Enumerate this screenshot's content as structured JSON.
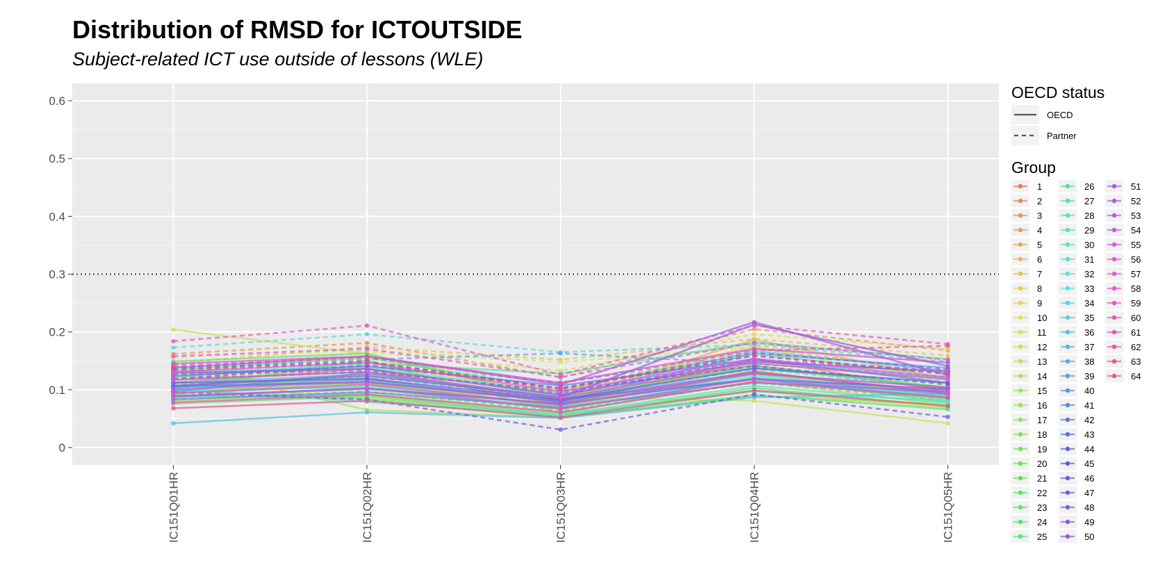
{
  "chart_data": {
    "type": "line",
    "title": "Distribution of RMSD for ICTOUTSIDE",
    "subtitle": "Subject-related ICT use outside of lessons (WLE)",
    "xlabel": "",
    "ylabel": "",
    "categories": [
      "IC151Q01HR",
      "IC151Q02HR",
      "IC151Q03HR",
      "IC151Q04HR",
      "IC151Q05HR"
    ],
    "y_ticks": [
      "0",
      "0.1",
      "0.2",
      "0.3",
      "0.4",
      "0.5",
      "0.6"
    ],
    "ylim": [
      -0.03,
      0.63
    ],
    "reference_line": 0.3,
    "grid": true,
    "legend_position": "right",
    "linetype_legend": {
      "title": "OECD status",
      "items": [
        {
          "label": "OECD",
          "dash": "solid"
        },
        {
          "label": "Partner",
          "dash": "dashed"
        }
      ]
    },
    "color_legend_title": "Group",
    "series": [
      {
        "name": "1",
        "status": "OECD",
        "values": [
          0.105,
          0.128,
          0.088,
          0.142,
          0.101
        ]
      },
      {
        "name": "2",
        "status": "OECD",
        "values": [
          0.112,
          0.137,
          0.074,
          0.153,
          0.097
        ]
      },
      {
        "name": "3",
        "status": "Partner",
        "values": [
          0.162,
          0.181,
          0.121,
          0.205,
          0.168
        ]
      },
      {
        "name": "4",
        "status": "OECD",
        "values": [
          0.093,
          0.121,
          0.068,
          0.133,
          0.089
        ]
      },
      {
        "name": "5",
        "status": "Partner",
        "values": [
          0.138,
          0.157,
          0.097,
          0.171,
          0.132
        ]
      },
      {
        "name": "6",
        "status": "OECD",
        "values": [
          0.124,
          0.109,
          0.082,
          0.187,
          0.118
        ]
      },
      {
        "name": "7",
        "status": "Partner",
        "values": [
          0.146,
          0.174,
          0.152,
          0.188,
          0.159
        ]
      },
      {
        "name": "8",
        "status": "OECD",
        "values": [
          0.081,
          0.094,
          0.061,
          0.115,
          0.073
        ]
      },
      {
        "name": "9",
        "status": "Partner",
        "values": [
          0.128,
          0.166,
          0.133,
          0.196,
          0.171
        ]
      },
      {
        "name": "10",
        "status": "OECD",
        "values": [
          0.116,
          0.142,
          0.095,
          0.176,
          0.107
        ]
      },
      {
        "name": "11",
        "status": "Partner",
        "values": [
          0.157,
          0.168,
          0.148,
          0.174,
          0.146
        ]
      },
      {
        "name": "12",
        "status": "OECD",
        "values": [
          0.204,
          0.162,
          0.086,
          0.081,
          0.042
        ]
      },
      {
        "name": "13",
        "status": "OECD",
        "values": [
          0.098,
          0.086,
          0.058,
          0.098,
          0.068
        ]
      },
      {
        "name": "14",
        "status": "Partner",
        "values": [
          0.121,
          0.138,
          0.091,
          0.147,
          0.116
        ]
      },
      {
        "name": "15",
        "status": "OECD",
        "values": [
          0.143,
          0.065,
          0.052,
          0.089,
          0.075
        ]
      },
      {
        "name": "16",
        "status": "OECD",
        "values": [
          0.108,
          0.118,
          0.077,
          0.129,
          0.094
        ]
      },
      {
        "name": "17",
        "status": "OECD",
        "values": [
          0.087,
          0.101,
          0.066,
          0.119,
          0.083
        ]
      },
      {
        "name": "18",
        "status": "OECD",
        "values": [
          0.134,
          0.155,
          0.101,
          0.163,
          0.122
        ]
      },
      {
        "name": "19",
        "status": "OECD",
        "values": [
          0.095,
          0.112,
          0.072,
          0.127,
          0.088
        ]
      },
      {
        "name": "20",
        "status": "OECD",
        "values": [
          0.149,
          0.163,
          0.081,
          0.142,
          0.104
        ]
      },
      {
        "name": "21",
        "status": "OECD",
        "values": [
          0.102,
          0.151,
          0.059,
          0.121,
          0.079
        ]
      },
      {
        "name": "22",
        "status": "OECD",
        "values": [
          0.076,
          0.089,
          0.054,
          0.103,
          0.071
        ]
      },
      {
        "name": "23",
        "status": "OECD",
        "values": [
          0.091,
          0.084,
          0.052,
          0.091,
          0.066
        ]
      },
      {
        "name": "24",
        "status": "OECD",
        "values": [
          0.118,
          0.131,
          0.087,
          0.138,
          0.104
        ]
      },
      {
        "name": "25",
        "status": "Partner",
        "values": [
          0.084,
          0.097,
          0.064,
          0.112,
          0.082
        ]
      },
      {
        "name": "26",
        "status": "OECD",
        "values": [
          0.122,
          0.146,
          0.128,
          0.182,
          0.153
        ]
      },
      {
        "name": "27",
        "status": "OECD",
        "values": [
          0.099,
          0.104,
          0.069,
          0.118,
          0.089
        ]
      },
      {
        "name": "28",
        "status": "Partner",
        "values": [
          0.109,
          0.123,
          0.084,
          0.136,
          0.102
        ]
      },
      {
        "name": "29",
        "status": "OECD",
        "values": [
          0.086,
          0.092,
          0.057,
          0.107,
          0.077
        ]
      },
      {
        "name": "30",
        "status": "OECD",
        "values": [
          0.131,
          0.139,
          0.094,
          0.151,
          0.118
        ]
      },
      {
        "name": "31",
        "status": "OECD",
        "values": [
          0.101,
          0.079,
          0.056,
          0.097,
          0.081
        ]
      },
      {
        "name": "32",
        "status": "Partner",
        "values": [
          0.127,
          0.144,
          0.113,
          0.159,
          0.131
        ]
      },
      {
        "name": "33",
        "status": "OECD",
        "values": [
          0.094,
          0.107,
          0.073,
          0.124,
          0.091
        ]
      },
      {
        "name": "34",
        "status": "Partner",
        "values": [
          0.173,
          0.196,
          0.165,
          0.178,
          0.149
        ]
      },
      {
        "name": "35",
        "status": "OECD",
        "values": [
          0.113,
          0.126,
          0.089,
          0.167,
          0.133
        ]
      },
      {
        "name": "36",
        "status": "OECD",
        "values": [
          0.042,
          0.061,
          0.051,
          0.087,
          0.093
        ]
      },
      {
        "name": "37",
        "status": "OECD",
        "values": [
          0.104,
          0.117,
          0.079,
          0.163,
          0.138
        ]
      },
      {
        "name": "38",
        "status": "Partner",
        "values": [
          0.139,
          0.152,
          0.163,
          0.145,
          0.122
        ]
      },
      {
        "name": "39",
        "status": "OECD",
        "values": [
          0.097,
          0.129,
          0.084,
          0.118,
          0.086
        ]
      },
      {
        "name": "40",
        "status": "OECD",
        "values": [
          0.083,
          0.096,
          0.069,
          0.112,
          0.097
        ]
      },
      {
        "name": "41",
        "status": "OECD",
        "values": [
          0.124,
          0.141,
          0.107,
          0.153,
          0.112
        ]
      },
      {
        "name": "42",
        "status": "OECD",
        "values": [
          0.106,
          0.113,
          0.081,
          0.131,
          0.094
        ]
      },
      {
        "name": "43",
        "status": "Partner",
        "values": [
          0.118,
          0.131,
          0.098,
          0.141,
          0.109
        ]
      },
      {
        "name": "44",
        "status": "OECD",
        "values": [
          0.089,
          0.102,
          0.076,
          0.119,
          0.101
        ]
      },
      {
        "name": "45",
        "status": "Partner",
        "values": [
          0.136,
          0.149,
          0.102,
          0.159,
          0.127
        ]
      },
      {
        "name": "46",
        "status": "OECD",
        "values": [
          0.112,
          0.119,
          0.083,
          0.137,
          0.112
        ]
      },
      {
        "name": "47",
        "status": "Partner",
        "values": [
          0.096,
          0.083,
          0.031,
          0.092,
          0.053
        ]
      },
      {
        "name": "48",
        "status": "OECD",
        "values": [
          0.129,
          0.136,
          0.091,
          0.149,
          0.131
        ]
      },
      {
        "name": "49",
        "status": "OECD",
        "values": [
          0.107,
          0.124,
          0.087,
          0.213,
          0.141
        ]
      },
      {
        "name": "50",
        "status": "Partner",
        "values": [
          0.119,
          0.142,
          0.103,
          0.164,
          0.136
        ]
      },
      {
        "name": "51",
        "status": "OECD",
        "values": [
          0.138,
          0.158,
          0.109,
          0.217,
          0.125
        ]
      },
      {
        "name": "52",
        "status": "OECD",
        "values": [
          0.101,
          0.114,
          0.079,
          0.128,
          0.104
        ]
      },
      {
        "name": "53",
        "status": "Partner",
        "values": [
          0.126,
          0.134,
          0.094,
          0.152,
          0.133
        ]
      },
      {
        "name": "54",
        "status": "OECD",
        "values": [
          0.145,
          0.158,
          0.112,
          0.171,
          0.147
        ]
      },
      {
        "name": "55",
        "status": "OECD",
        "values": [
          0.088,
          0.103,
          0.067,
          0.119,
          0.093
        ]
      },
      {
        "name": "56",
        "status": "OECD",
        "values": [
          0.131,
          0.147,
          0.097,
          0.154,
          0.121
        ]
      },
      {
        "name": "57",
        "status": "Partner",
        "values": [
          0.158,
          0.171,
          0.122,
          0.181,
          0.152
        ]
      },
      {
        "name": "58",
        "status": "OECD",
        "values": [
          0.117,
          0.131,
          0.086,
          0.146,
          0.118
        ]
      },
      {
        "name": "59",
        "status": "Partner",
        "values": [
          0.184,
          0.211,
          0.126,
          0.211,
          0.179
        ]
      },
      {
        "name": "60",
        "status": "OECD",
        "values": [
          0.094,
          0.109,
          0.073,
          0.129,
          0.097
        ]
      },
      {
        "name": "61",
        "status": "OECD",
        "values": [
          0.078,
          0.092,
          0.061,
          0.114,
          0.086
        ]
      },
      {
        "name": "62",
        "status": "Partner",
        "values": [
          0.142,
          0.156,
          0.111,
          0.168,
          0.176
        ]
      },
      {
        "name": "63",
        "status": "OECD",
        "values": [
          0.068,
          0.081,
          0.052,
          0.099,
          0.072
        ]
      },
      {
        "name": "64",
        "status": "Partner",
        "values": [
          0.133,
          0.147,
          0.101,
          0.159,
          0.129
        ]
      }
    ]
  }
}
